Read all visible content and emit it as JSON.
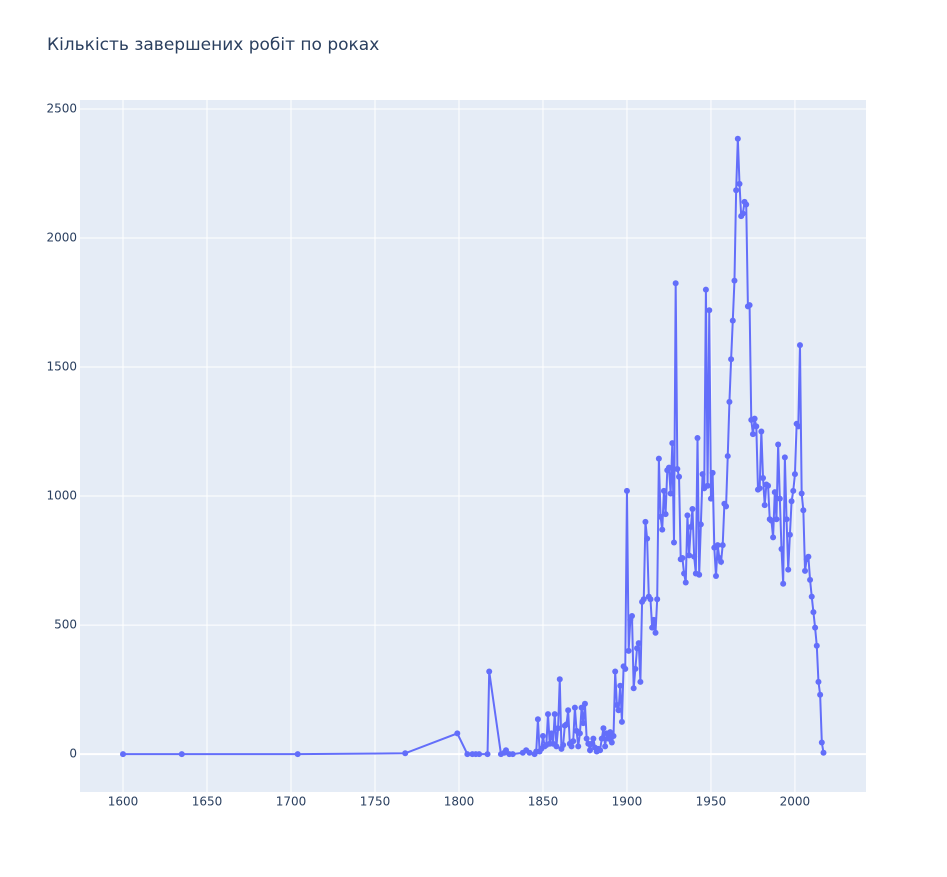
{
  "chart_data": {
    "type": "line",
    "title": "Кількість завершених робіт по роках",
    "x": [
      1600,
      1635,
      1704,
      1768,
      1799,
      1805,
      1808,
      1810,
      1812,
      1817,
      1818,
      1825,
      1827,
      1828,
      1830,
      1832,
      1838,
      1840,
      1842,
      1845,
      1846,
      1847,
      1848,
      1849,
      1850,
      1851,
      1852,
      1853,
      1854,
      1855,
      1856,
      1857,
      1858,
      1859,
      1860,
      1861,
      1862,
      1863,
      1864,
      1865,
      1866,
      1867,
      1868,
      1869,
      1870,
      1871,
      1872,
      1873,
      1874,
      1875,
      1876,
      1877,
      1878,
      1879,
      1880,
      1881,
      1882,
      1883,
      1884,
      1885,
      1886,
      1887,
      1888,
      1889,
      1890,
      1891,
      1892,
      1893,
      1894,
      1895,
      1896,
      1897,
      1898,
      1899,
      1900,
      1901,
      1902,
      1903,
      1904,
      1905,
      1906,
      1907,
      1908,
      1909,
      1910,
      1911,
      1912,
      1913,
      1914,
      1915,
      1916,
      1917,
      1918,
      1919,
      1920,
      1921,
      1922,
      1923,
      1924,
      1925,
      1926,
      1927,
      1928,
      1929,
      1930,
      1931,
      1932,
      1933,
      1934,
      1935,
      1936,
      1937,
      1938,
      1939,
      1940,
      1941,
      1942,
      1943,
      1944,
      1945,
      1946,
      1947,
      1948,
      1949,
      1950,
      1951,
      1952,
      1953,
      1954,
      1955,
      1956,
      1957,
      1958,
      1959,
      1960,
      1961,
      1962,
      1963,
      1964,
      1965,
      1966,
      1967,
      1968,
      1969,
      1970,
      1971,
      1972,
      1973,
      1974,
      1975,
      1976,
      1977,
      1978,
      1979,
      1980,
      1981,
      1982,
      1983,
      1984,
      1985,
      1986,
      1987,
      1988,
      1989,
      1990,
      1991,
      1992,
      1993,
      1994,
      1995,
      1996,
      1997,
      1998,
      1999,
      2000,
      2001,
      2002,
      2003,
      2004,
      2005,
      2006,
      2007,
      2008,
      2009,
      2010,
      2011,
      2012,
      2013,
      2014,
      2015,
      2016,
      2017
    ],
    "series": [
      {
        "color": "#636efa",
        "values": [
          0,
          0,
          0,
          3,
          80,
          0,
          0,
          0,
          0,
          0,
          320,
          0,
          5,
          15,
          0,
          0,
          5,
          15,
          5,
          0,
          10,
          135,
          10,
          20,
          70,
          30,
          35,
          155,
          40,
          80,
          40,
          155,
          30,
          100,
          290,
          20,
          35,
          110,
          115,
          170,
          40,
          30,
          50,
          180,
          90,
          30,
          80,
          180,
          120,
          195,
          60,
          40,
          15,
          40,
          60,
          25,
          10,
          20,
          15,
          60,
          100,
          30,
          80,
          60,
          85,
          45,
          70,
          320,
          190,
          170,
          265,
          125,
          340,
          330,
          1020,
          400,
          520,
          535,
          255,
          330,
          410,
          430,
          280,
          590,
          600,
          900,
          835,
          610,
          600,
          490,
          520,
          470,
          600,
          1145,
          920,
          870,
          1020,
          930,
          1100,
          1110,
          1010,
          1205,
          820,
          1825,
          1105,
          1075,
          755,
          760,
          700,
          665,
          925,
          770,
          880,
          950,
          765,
          700,
          1225,
          695,
          890,
          1085,
          1030,
          1800,
          1040,
          1720,
          990,
          1090,
          800,
          690,
          810,
          760,
          745,
          810,
          970,
          960,
          1155,
          1365,
          1530,
          1680,
          1835,
          2185,
          2385,
          2210,
          2085,
          2095,
          2140,
          2130,
          1735,
          1740,
          1295,
          1240,
          1300,
          1270,
          1025,
          1030,
          1250,
          1070,
          965,
          1045,
          1040,
          910,
          905,
          840,
          1015,
          910,
          1200,
          990,
          795,
          660,
          1150,
          910,
          715,
          850,
          980,
          1020,
          1085,
          1280,
          1270,
          1585,
          1010,
          945,
          710,
          755,
          765,
          675,
          610,
          550,
          490,
          420,
          280,
          230,
          45,
          5
        ]
      }
    ],
    "xlim": [
      1574.4,
      2042.3
    ],
    "ylim": [
      -147,
      2535
    ],
    "xticks": [
      1600,
      1650,
      1700,
      1750,
      1800,
      1850,
      1900,
      1950,
      2000
    ],
    "yticks": [
      0,
      500,
      1000,
      1500,
      2000,
      2500
    ],
    "grid": true
  }
}
